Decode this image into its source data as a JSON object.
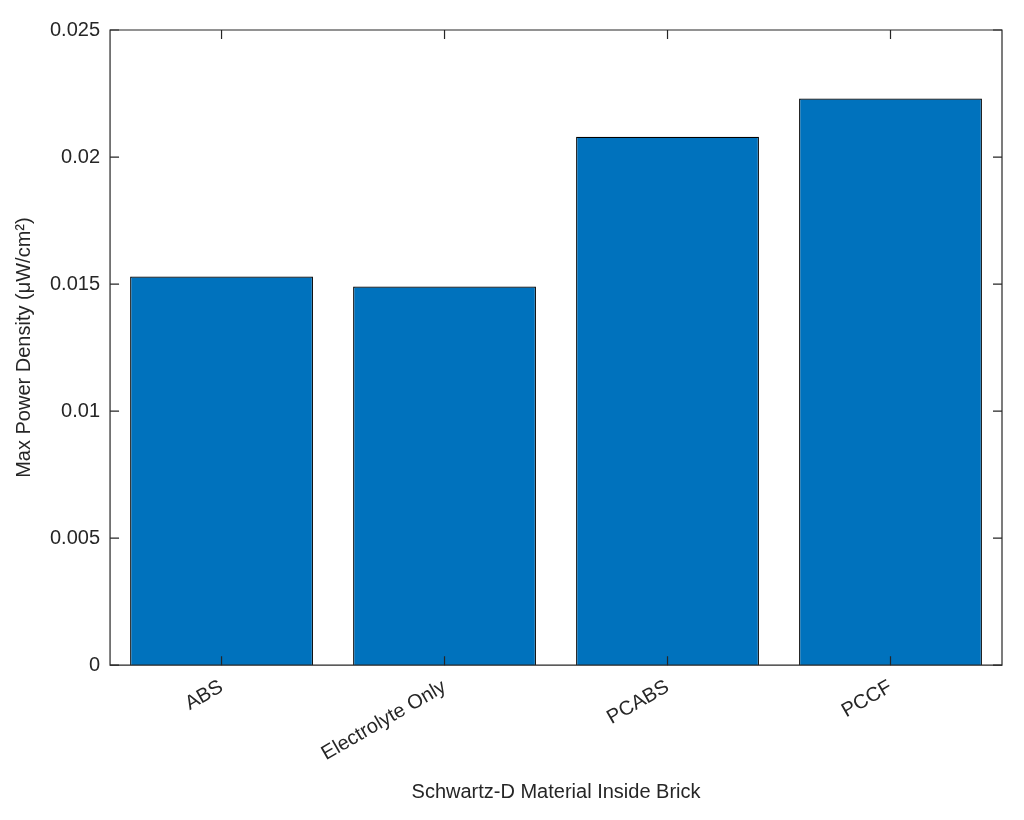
{
  "chart_data": {
    "type": "bar",
    "xlabel": "Schwartz-D Material Inside Brick",
    "ylabel": "Max Power Density (μW/cm²)",
    "categories": [
      "ABS",
      "Electrolyte Only",
      "PCABS",
      "PCCF"
    ],
    "values": [
      0.0153,
      0.0149,
      0.0208,
      0.0223
    ],
    "color": "#0072bd",
    "ylim": [
      0,
      0.025
    ],
    "yticks": [
      0,
      0.005,
      0.01,
      0.015,
      0.02,
      0.025
    ],
    "grid": false,
    "legend": false
  }
}
